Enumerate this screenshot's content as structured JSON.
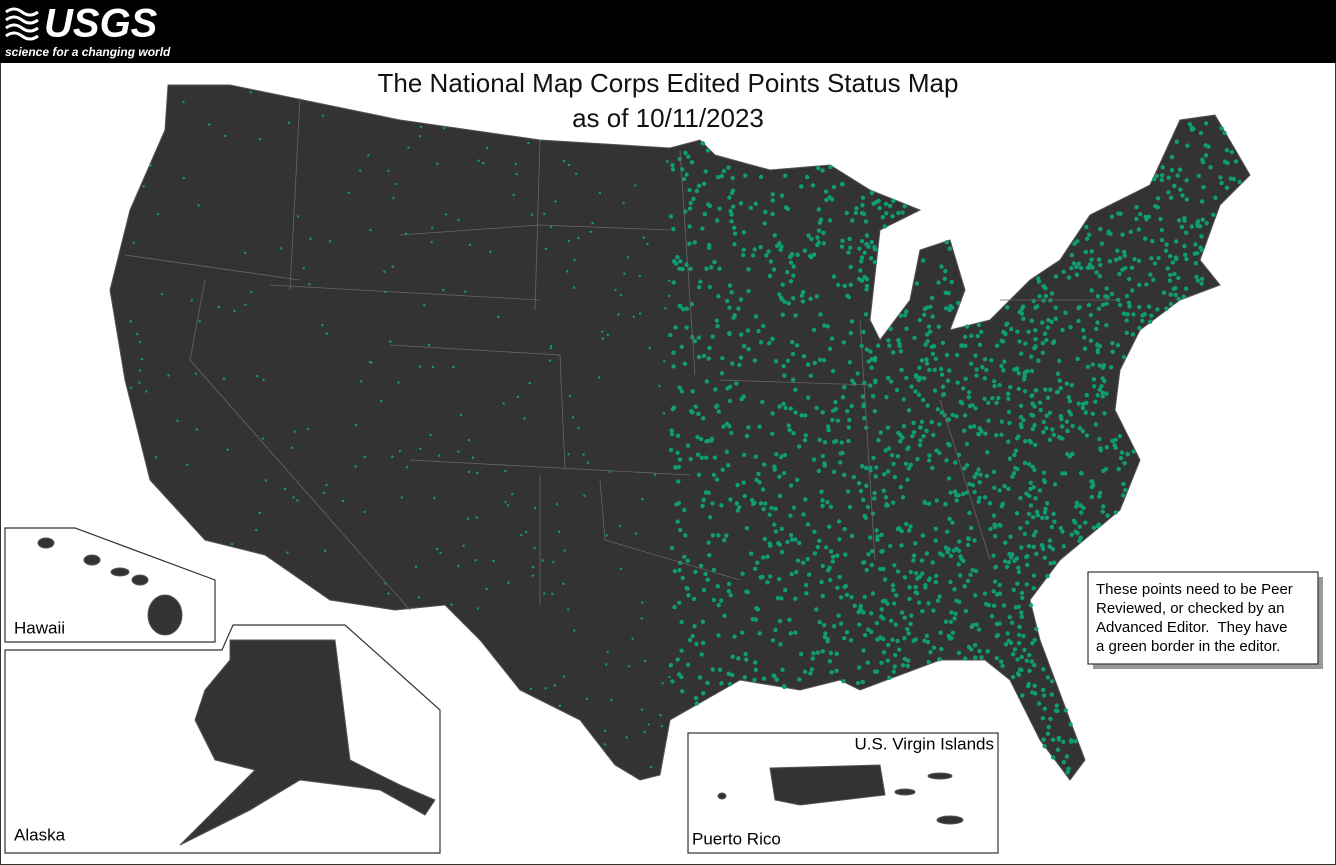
{
  "header": {
    "logo": "USGS",
    "tagline": "science for a changing world"
  },
  "title": {
    "line1": "The National Map Corps Edited Points Status Map",
    "line2": "as of 10/11/2023"
  },
  "insets": {
    "hawaii": "Hawaii",
    "alaska": "Alaska",
    "virgin_islands": "U.S. Virgin Islands",
    "puerto_rico": "Puerto Rico"
  },
  "note": {
    "lines": [
      "These points need to be Peer",
      "Reviewed, or checked by an",
      "Advanced Editor.  They have",
      "a green border in the editor."
    ]
  }
}
